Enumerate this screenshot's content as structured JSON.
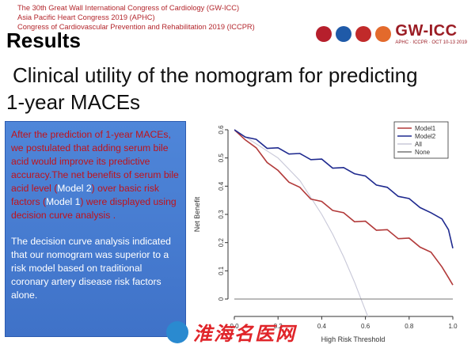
{
  "header": {
    "lines": [
      "The 30th Great Wall International Congress of Cardiology (GW-ICC)",
      "Asia Pacific Heart Congress 2019 (APHC)",
      "Congress of Cardiovascular Prevention and Rehabilitation 2019 (ICCPR)"
    ],
    "brand": "GW-ICC",
    "brand_sub": "APHC · ICCPR · OCT 10-13 2019"
  },
  "slide": {
    "title": "Results",
    "subtitle_line1": "Clinical utility of the nomogram for predicting",
    "subtitle_line2": "1-year MACEs"
  },
  "textbox": {
    "p1_part1": "After the prediction of 1-year MACEs, we postulated that adding serum bile acid would improve its predictive accuracy.The net benefits of serum bile acid level (",
    "p1_model2": "Model 2",
    "p1_part2": ") over basic risk factors (",
    "p1_model1": "Model 1",
    "p1_part3": ") were displayed using decision curve analysis .",
    "p2": "The decision curve analysis indicated that our nomogram was superior to a risk model based on traditional coronary artery disease risk factors alone."
  },
  "chart_data": {
    "type": "line",
    "xlabel": "High Risk Threshold",
    "ylabel": "Net Benefit",
    "xlim": [
      0,
      1
    ],
    "ylim": [
      0,
      0.6
    ],
    "x_ticks": [
      "0.0",
      "0.2",
      "0.4",
      "0.6",
      "0.8",
      "1.0"
    ],
    "y_ticks": [
      "0",
      "0.1",
      "0.2",
      "0.3",
      "0.4",
      "0.5",
      "0.6"
    ],
    "legend_position": "top-right",
    "series": [
      {
        "name": "Model1",
        "color": "#b23a3a",
        "x": [
          0.0,
          0.05,
          0.1,
          0.15,
          0.2,
          0.25,
          0.3,
          0.35,
          0.4,
          0.45,
          0.5,
          0.55,
          0.6,
          0.65,
          0.7,
          0.75,
          0.8,
          0.85,
          0.9,
          0.95,
          0.98,
          1.0
        ],
        "y": [
          0.6,
          0.57,
          0.53,
          0.49,
          0.45,
          0.42,
          0.39,
          0.36,
          0.34,
          0.32,
          0.3,
          0.28,
          0.27,
          0.25,
          0.24,
          0.22,
          0.21,
          0.19,
          0.16,
          0.12,
          0.07,
          0.05
        ]
      },
      {
        "name": "Model2",
        "color": "#1f2a8f",
        "x": [
          0.0,
          0.05,
          0.1,
          0.15,
          0.2,
          0.25,
          0.3,
          0.35,
          0.4,
          0.45,
          0.5,
          0.55,
          0.6,
          0.65,
          0.7,
          0.75,
          0.8,
          0.85,
          0.9,
          0.95,
          0.98,
          1.0
        ],
        "y": [
          0.6,
          0.58,
          0.56,
          0.54,
          0.53,
          0.52,
          0.51,
          0.5,
          0.49,
          0.47,
          0.46,
          0.45,
          0.43,
          0.41,
          0.39,
          0.37,
          0.35,
          0.33,
          0.3,
          0.29,
          0.24,
          0.18
        ]
      },
      {
        "name": "All",
        "color": "#c8c8d8",
        "x": [
          0.0,
          0.1,
          0.2,
          0.3,
          0.4,
          0.45,
          0.5,
          0.55,
          0.6,
          0.62
        ],
        "y": [
          0.6,
          0.55,
          0.5,
          0.42,
          0.3,
          0.23,
          0.15,
          0.06,
          -0.04,
          -0.08
        ]
      },
      {
        "name": "None",
        "color": "#777777",
        "x": [
          0.0,
          1.0
        ],
        "y": [
          0.0,
          0.0
        ]
      }
    ]
  },
  "watermark": {
    "text": "淮海名医网"
  }
}
